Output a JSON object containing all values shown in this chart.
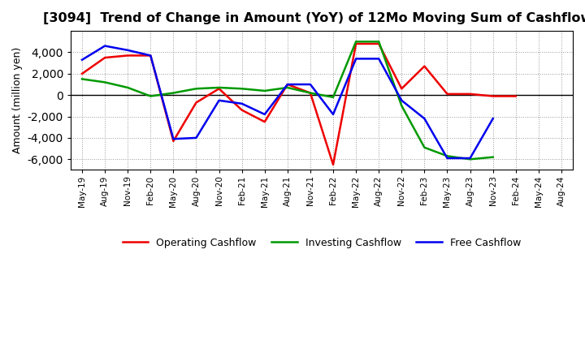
{
  "title": "[3094]  Trend of Change in Amount (YoY) of 12Mo Moving Sum of Cashflows",
  "ylabel": "Amount (million yen)",
  "x_labels": [
    "May-19",
    "Aug-19",
    "Nov-19",
    "Feb-20",
    "May-20",
    "Aug-20",
    "Nov-20",
    "Feb-21",
    "May-21",
    "Aug-21",
    "Nov-21",
    "Feb-22",
    "May-22",
    "Aug-22",
    "Nov-22",
    "Feb-23",
    "May-23",
    "Aug-23",
    "Nov-23",
    "Feb-24",
    "May-24",
    "Aug-24"
  ],
  "operating": [
    2000,
    3500,
    3700,
    3700,
    -4300,
    -700,
    600,
    -1400,
    -2500,
    1000,
    200,
    -6500,
    4800,
    4800,
    600,
    2700,
    100,
    100,
    -100,
    -100,
    null,
    null
  ],
  "investing": [
    1500,
    1200,
    700,
    -100,
    200,
    600,
    700,
    600,
    400,
    700,
    200,
    -200,
    5000,
    5000,
    -1000,
    -4900,
    -5700,
    -6000,
    -5800,
    null,
    null,
    null
  ],
  "free": [
    3300,
    4600,
    4200,
    3700,
    -4100,
    -4000,
    -500,
    -800,
    -1800,
    1000,
    1000,
    -1800,
    3400,
    3400,
    -500,
    -2200,
    -5900,
    -5900,
    -2200,
    null,
    null,
    null
  ],
  "operating_color": "#EE0000",
  "investing_color": "#009900",
  "free_color": "#0000EE",
  "ylim": [
    -7000,
    6000
  ],
  "yticks": [
    -6000,
    -4000,
    -2000,
    0,
    2000,
    4000
  ],
  "background_color": "#FFFFFF",
  "grid_color": "#999999",
  "title_fontsize": 11.5,
  "legend_labels": [
    "Operating Cashflow",
    "Investing Cashflow",
    "Free Cashflow"
  ]
}
